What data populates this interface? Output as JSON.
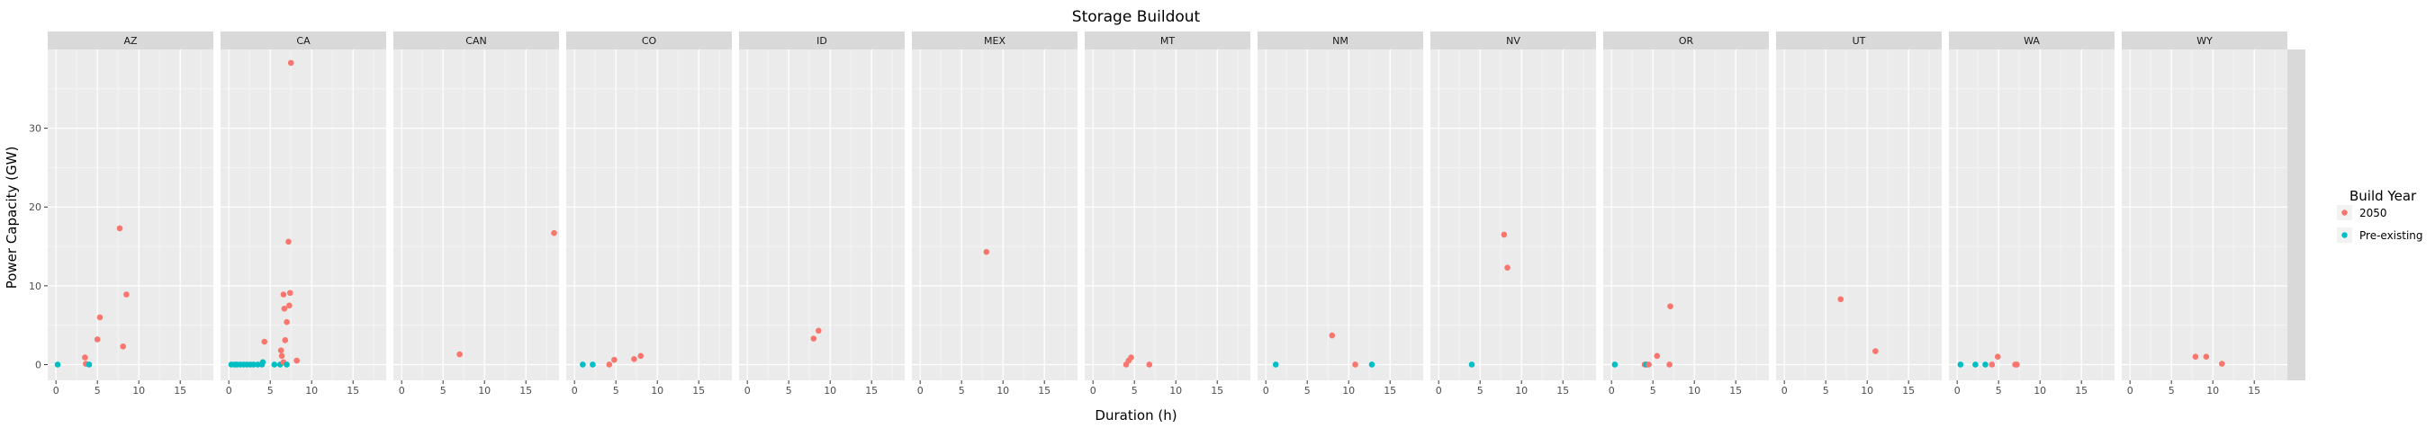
{
  "chart_data": {
    "type": "scatter",
    "title": "Storage Buildout",
    "xlabel": "Duration (h)",
    "ylabel": "Power Capacity (GW)",
    "xlim": [
      -1,
      19
    ],
    "ylim": [
      -2,
      40
    ],
    "x_ticks": [
      0,
      5,
      10,
      15
    ],
    "y_ticks": [
      0,
      10,
      20,
      30
    ],
    "grid": true,
    "legend": {
      "title": "Build Year",
      "placement": "right",
      "entries": [
        {
          "label": "2050",
          "color": "#F8766D"
        },
        {
          "label": "Pre-existing",
          "color": "#00BFC4"
        }
      ]
    },
    "series": [
      {
        "name": "2050",
        "color": "#F8766D"
      },
      {
        "name": "Pre-existing",
        "color": "#00BFC4"
      }
    ],
    "panels": [
      {
        "name": "AZ",
        "points": [
          {
            "s": 1,
            "x": 0.2,
            "y": 0
          },
          {
            "s": 0,
            "x": 3.5,
            "y": 0.9
          },
          {
            "s": 0,
            "x": 3.6,
            "y": 0.1
          },
          {
            "s": 1,
            "x": 4.0,
            "y": 0
          },
          {
            "s": 0,
            "x": 5.0,
            "y": 3.2
          },
          {
            "s": 0,
            "x": 5.3,
            "y": 6.0
          },
          {
            "s": 0,
            "x": 7.7,
            "y": 17.3
          },
          {
            "s": 0,
            "x": 8.1,
            "y": 2.3
          },
          {
            "s": 0,
            "x": 8.5,
            "y": 8.9
          }
        ]
      },
      {
        "name": "CA",
        "points": [
          {
            "s": 1,
            "x": 0.3,
            "y": 0
          },
          {
            "s": 1,
            "x": 0.7,
            "y": 0
          },
          {
            "s": 1,
            "x": 1.0,
            "y": 0
          },
          {
            "s": 1,
            "x": 1.4,
            "y": 0
          },
          {
            "s": 1,
            "x": 1.8,
            "y": 0
          },
          {
            "s": 1,
            "x": 2.2,
            "y": 0
          },
          {
            "s": 1,
            "x": 2.6,
            "y": 0
          },
          {
            "s": 1,
            "x": 3.0,
            "y": 0
          },
          {
            "s": 1,
            "x": 3.5,
            "y": 0
          },
          {
            "s": 1,
            "x": 4.0,
            "y": 0
          },
          {
            "s": 1,
            "x": 4.1,
            "y": 0.3
          },
          {
            "s": 0,
            "x": 4.3,
            "y": 2.9
          },
          {
            "s": 1,
            "x": 5.5,
            "y": 0
          },
          {
            "s": 1,
            "x": 6.2,
            "y": 0
          },
          {
            "s": 0,
            "x": 6.3,
            "y": 1.8
          },
          {
            "s": 0,
            "x": 6.4,
            "y": 1.1
          },
          {
            "s": 0,
            "x": 6.6,
            "y": 0.3
          },
          {
            "s": 0,
            "x": 6.6,
            "y": 8.9
          },
          {
            "s": 0,
            "x": 6.7,
            "y": 7.1
          },
          {
            "s": 0,
            "x": 6.8,
            "y": 3.1
          },
          {
            "s": 0,
            "x": 7.0,
            "y": 5.4
          },
          {
            "s": 1,
            "x": 7.0,
            "y": 0
          },
          {
            "s": 0,
            "x": 7.2,
            "y": 15.6
          },
          {
            "s": 0,
            "x": 7.3,
            "y": 7.5
          },
          {
            "s": 0,
            "x": 7.4,
            "y": 9.1
          },
          {
            "s": 0,
            "x": 7.5,
            "y": 38.3
          },
          {
            "s": 0,
            "x": 8.2,
            "y": 0.5
          }
        ]
      },
      {
        "name": "CAN",
        "points": [
          {
            "s": 0,
            "x": 7.0,
            "y": 1.3
          },
          {
            "s": 0,
            "x": 18.4,
            "y": 16.7
          }
        ]
      },
      {
        "name": "CO",
        "points": [
          {
            "s": 1,
            "x": 1.0,
            "y": 0
          },
          {
            "s": 1,
            "x": 2.2,
            "y": 0
          },
          {
            "s": 0,
            "x": 4.2,
            "y": 0
          },
          {
            "s": 0,
            "x": 4.8,
            "y": 0.6
          },
          {
            "s": 0,
            "x": 7.2,
            "y": 0.7
          },
          {
            "s": 0,
            "x": 8.0,
            "y": 1.1
          }
        ]
      },
      {
        "name": "ID",
        "points": [
          {
            "s": 0,
            "x": 8.0,
            "y": 3.3
          },
          {
            "s": 0,
            "x": 8.6,
            "y": 4.3
          }
        ]
      },
      {
        "name": "MEX",
        "points": [
          {
            "s": 0,
            "x": 8.0,
            "y": 14.3
          }
        ]
      },
      {
        "name": "MT",
        "points": [
          {
            "s": 0,
            "x": 4.0,
            "y": 0
          },
          {
            "s": 0,
            "x": 4.3,
            "y": 0.5
          },
          {
            "s": 0,
            "x": 4.6,
            "y": 0.9
          },
          {
            "s": 0,
            "x": 6.8,
            "y": 0
          }
        ]
      },
      {
        "name": "NM",
        "points": [
          {
            "s": 1,
            "x": 1.2,
            "y": 0
          },
          {
            "s": 0,
            "x": 8.0,
            "y": 3.7
          },
          {
            "s": 0,
            "x": 10.8,
            "y": 0
          },
          {
            "s": 1,
            "x": 12.8,
            "y": 0
          }
        ]
      },
      {
        "name": "NV",
        "points": [
          {
            "s": 1,
            "x": 4.0,
            "y": 0
          },
          {
            "s": 0,
            "x": 7.9,
            "y": 16.5
          },
          {
            "s": 0,
            "x": 8.3,
            "y": 12.3
          }
        ]
      },
      {
        "name": "OR",
        "points": [
          {
            "s": 1,
            "x": 0.4,
            "y": 0
          },
          {
            "s": 0,
            "x": 4.0,
            "y": 0
          },
          {
            "s": 1,
            "x": 4.2,
            "y": 0
          },
          {
            "s": 0,
            "x": 4.5,
            "y": 0
          },
          {
            "s": 0,
            "x": 5.5,
            "y": 1.1
          },
          {
            "s": 0,
            "x": 7.0,
            "y": 0
          },
          {
            "s": 0,
            "x": 7.1,
            "y": 7.4
          }
        ]
      },
      {
        "name": "UT",
        "points": [
          {
            "s": 0,
            "x": 6.8,
            "y": 8.3
          },
          {
            "s": 0,
            "x": 11.0,
            "y": 1.7
          }
        ]
      },
      {
        "name": "WA",
        "points": [
          {
            "s": 1,
            "x": 0.4,
            "y": 0
          },
          {
            "s": 1,
            "x": 2.2,
            "y": 0
          },
          {
            "s": 1,
            "x": 3.4,
            "y": 0
          },
          {
            "s": 0,
            "x": 4.2,
            "y": 0
          },
          {
            "s": 0,
            "x": 4.9,
            "y": 1.0
          },
          {
            "s": 0,
            "x": 7.0,
            "y": 0
          },
          {
            "s": 0,
            "x": 7.2,
            "y": 0
          }
        ]
      },
      {
        "name": "WY",
        "points": [
          {
            "s": 0,
            "x": 7.9,
            "y": 1.0
          },
          {
            "s": 0,
            "x": 9.2,
            "y": 1.0
          },
          {
            "s": 0,
            "x": 11.1,
            "y": 0.1
          }
        ]
      }
    ]
  }
}
